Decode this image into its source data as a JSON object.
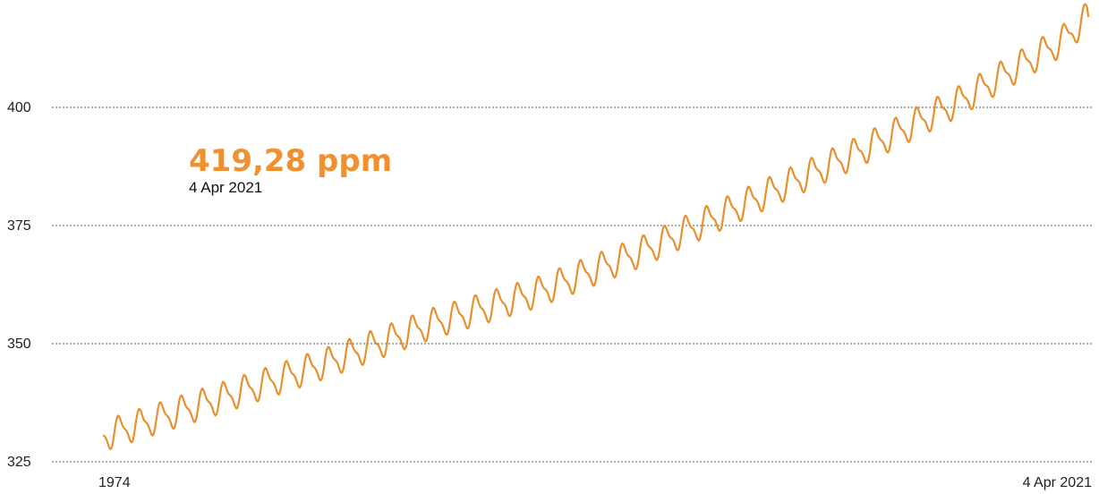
{
  "colors": {
    "series": "#e8902e",
    "highlight": "#f0902f",
    "grid": "#555555",
    "text": "#222222"
  },
  "callout": {
    "value_label": "419,28 ppm",
    "date_label": "4 Apr 2021"
  },
  "chart_data": {
    "type": "line",
    "title": "",
    "xlabel": "",
    "ylabel": "",
    "x_tick_labels": [
      "1974",
      "4 Apr 2021"
    ],
    "x_range": [
      "1974",
      "2021-04-04"
    ],
    "y_ticks": [
      325,
      350,
      375,
      400
    ],
    "ylim": [
      325,
      420
    ],
    "grid": "horizontal dotted",
    "legend": "none",
    "series": [
      {
        "name": "",
        "x": [
          1974.4,
          1980,
          1985,
          1990,
          1995,
          2000,
          2005,
          2010,
          2015,
          2020,
          2021.26
        ],
        "y": [
          330.5,
          338.5,
          345.9,
          354.2,
          360.8,
          369.5,
          379.8,
          389.9,
          401.0,
          414.0,
          419.28
        ],
        "seasonal_amplitude": 3.3
      }
    ]
  }
}
